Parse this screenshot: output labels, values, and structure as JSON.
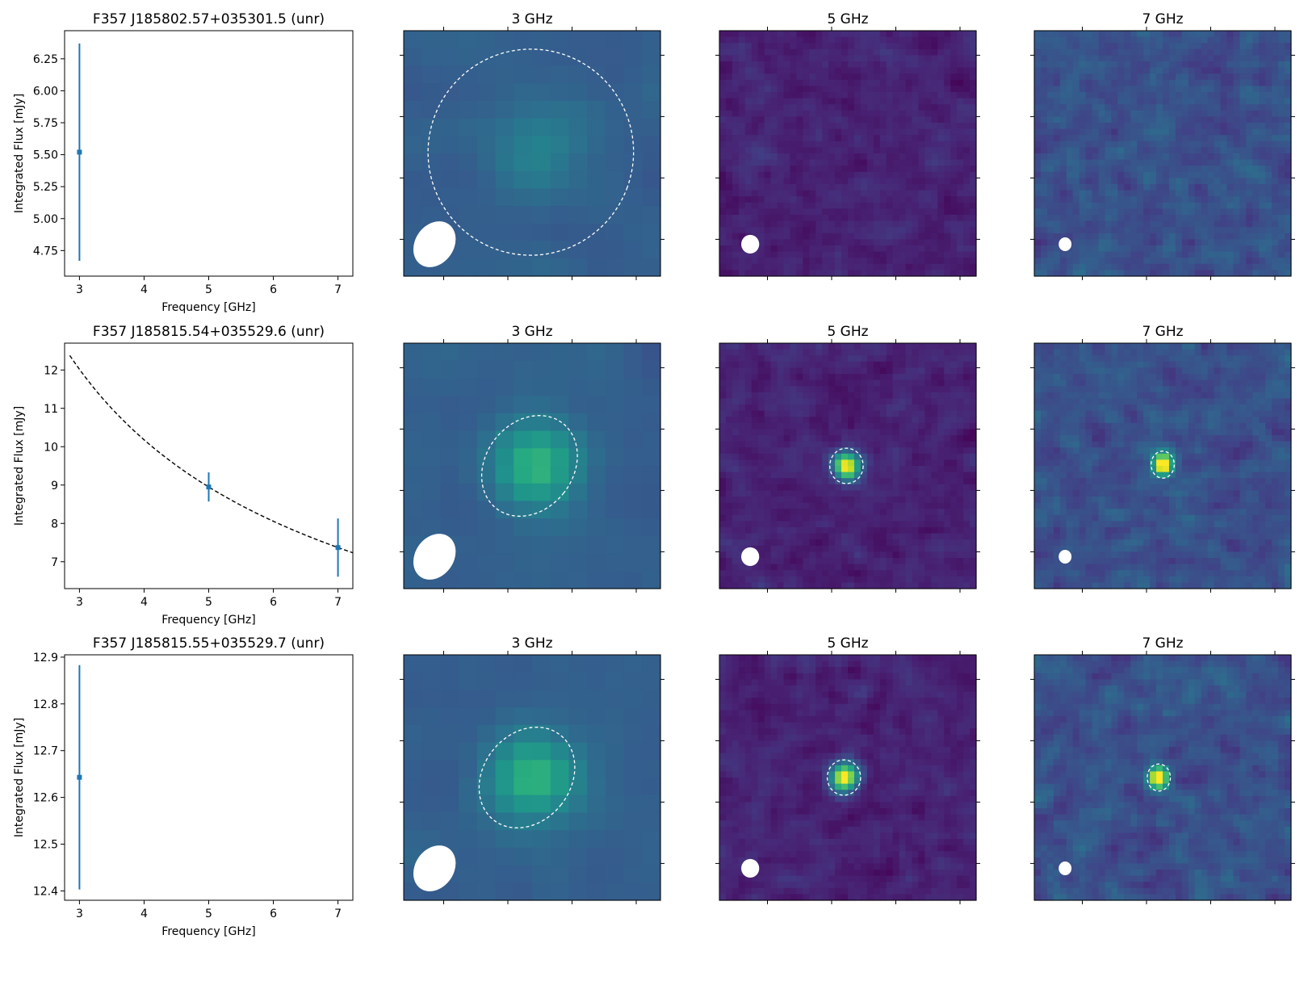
{
  "chart_data": [
    {
      "row": 0,
      "spectrum": {
        "type": "scatter",
        "title": "F357 J185802.57+035301.5 (unr)",
        "xlabel": "Frequency [GHz]",
        "ylabel": "Integrated Flux [mJy]",
        "xlim": [
          2.77,
          7.23
        ],
        "ylim": [
          4.55,
          6.47
        ],
        "xticks": [
          3,
          4,
          5,
          6,
          7
        ],
        "yticks": [
          4.75,
          5.0,
          5.25,
          5.5,
          5.75,
          6.0,
          6.25
        ],
        "ytick_labels": [
          "4.75",
          "5.00",
          "5.25",
          "5.50",
          "5.75",
          "6.00",
          "6.25"
        ],
        "points": [
          {
            "x": 3,
            "y": 5.52,
            "err": 0.85
          }
        ],
        "fit": null
      },
      "cutouts": [
        {
          "title": "3 GHz",
          "brightness": 0.3,
          "blob_peak": 0.12,
          "blob_sigma": 0.16,
          "pix": 14,
          "source": {
            "x": 0.495,
            "y": 0.495,
            "rx": 0.4,
            "ry": 0.42,
            "angle": 20,
            "peak": 0.0
          },
          "beam": {
            "x": 0.12,
            "y": 0.87,
            "rx": 0.075,
            "ry": 0.1,
            "angle": 35
          }
        },
        {
          "title": "5 GHz",
          "brightness": 0.1,
          "noise": 0.11,
          "pix": 40,
          "source": null,
          "beam": {
            "x": 0.12,
            "y": 0.87,
            "rx": 0.035,
            "ry": 0.038,
            "angle": 0
          }
        },
        {
          "title": "7 GHz",
          "brightness": 0.25,
          "noise": 0.16,
          "pix": 40,
          "source": null,
          "beam": {
            "x": 0.12,
            "y": 0.87,
            "rx": 0.025,
            "ry": 0.028,
            "angle": 0
          }
        }
      ]
    },
    {
      "row": 1,
      "spectrum": {
        "type": "scatter",
        "title": "F357 J185815.54+035529.6 (unr)",
        "xlabel": "Frequency [GHz]",
        "ylabel": "Integrated Flux [mJy]",
        "xlim": [
          2.77,
          7.23
        ],
        "ylim": [
          6.3,
          12.7
        ],
        "xticks": [
          3,
          4,
          5,
          6,
          7
        ],
        "yticks": [
          7,
          8,
          9,
          10,
          11,
          12
        ],
        "ytick_labels": [
          "7",
          "8",
          "9",
          "10",
          "11",
          "12"
        ],
        "points": [
          {
            "x": 5,
            "y": 8.95,
            "err": 0.38
          },
          {
            "x": 7,
            "y": 7.37,
            "err": 0.76
          }
        ],
        "fit": {
          "type": "power-law",
          "ref_x": 5,
          "ref_y": 8.95,
          "index": -0.577,
          "x_from": 2.85,
          "x_to": 7.23
        }
      },
      "cutouts": [
        {
          "title": "3 GHz",
          "brightness": 0.3,
          "blob_peak": 0.36,
          "blob_sigma": 0.12,
          "pix": 14,
          "source": {
            "x": 0.49,
            "y": 0.5,
            "rx": 0.17,
            "ry": 0.22,
            "angle": 38,
            "peak": 0.0
          },
          "beam": {
            "x": 0.12,
            "y": 0.87,
            "rx": 0.075,
            "ry": 0.1,
            "angle": 35
          }
        },
        {
          "title": "5 GHz",
          "brightness": 0.1,
          "noise": 0.11,
          "pix": 40,
          "source": {
            "x": 0.495,
            "y": 0.5,
            "rx": 0.065,
            "ry": 0.072,
            "angle": 0,
            "peak": 0.95
          },
          "beam": {
            "x": 0.12,
            "y": 0.87,
            "rx": 0.035,
            "ry": 0.038,
            "angle": 0
          }
        },
        {
          "title": "7 GHz",
          "brightness": 0.25,
          "noise": 0.16,
          "pix": 40,
          "source": {
            "x": 0.5,
            "y": 0.495,
            "rx": 0.045,
            "ry": 0.055,
            "angle": 0,
            "peak": 0.95
          },
          "beam": {
            "x": 0.12,
            "y": 0.87,
            "rx": 0.025,
            "ry": 0.028,
            "angle": 0
          }
        }
      ]
    },
    {
      "row": 2,
      "spectrum": {
        "type": "scatter",
        "title": "F357 J185815.55+035529.7 (unr)",
        "xlabel": "Frequency [GHz]",
        "ylabel": "Integrated Flux [mJy]",
        "xlim": [
          2.77,
          7.23
        ],
        "ylim": [
          12.38,
          12.905
        ],
        "xticks": [
          3,
          4,
          5,
          6,
          7
        ],
        "yticks": [
          12.4,
          12.5,
          12.6,
          12.7,
          12.8,
          12.9
        ],
        "ytick_labels": [
          "12.4",
          "12.5",
          "12.6",
          "12.7",
          "12.8",
          "12.9"
        ],
        "points": [
          {
            "x": 3,
            "y": 12.643,
            "err": 0.24
          }
        ],
        "fit": null
      },
      "cutouts": [
        {
          "title": "3 GHz",
          "brightness": 0.3,
          "blob_peak": 0.36,
          "blob_sigma": 0.12,
          "pix": 14,
          "source": {
            "x": 0.48,
            "y": 0.5,
            "rx": 0.17,
            "ry": 0.22,
            "angle": 38,
            "peak": 0.0
          },
          "beam": {
            "x": 0.12,
            "y": 0.87,
            "rx": 0.075,
            "ry": 0.1,
            "angle": 35
          }
        },
        {
          "title": "5 GHz",
          "brightness": 0.1,
          "noise": 0.11,
          "pix": 40,
          "source": {
            "x": 0.485,
            "y": 0.5,
            "rx": 0.065,
            "ry": 0.072,
            "angle": 0,
            "peak": 0.95
          },
          "beam": {
            "x": 0.12,
            "y": 0.87,
            "rx": 0.035,
            "ry": 0.038,
            "angle": 0
          }
        },
        {
          "title": "7 GHz",
          "brightness": 0.25,
          "noise": 0.16,
          "pix": 40,
          "source": {
            "x": 0.485,
            "y": 0.5,
            "rx": 0.045,
            "ry": 0.055,
            "angle": 0,
            "peak": 0.95
          },
          "beam": {
            "x": 0.12,
            "y": 0.87,
            "rx": 0.025,
            "ry": 0.028,
            "angle": 0
          }
        }
      ]
    }
  ],
  "colors": {
    "series": "#1f77b4",
    "fit": "#000000",
    "contour": "#ffffff",
    "beam": "#ffffff"
  }
}
